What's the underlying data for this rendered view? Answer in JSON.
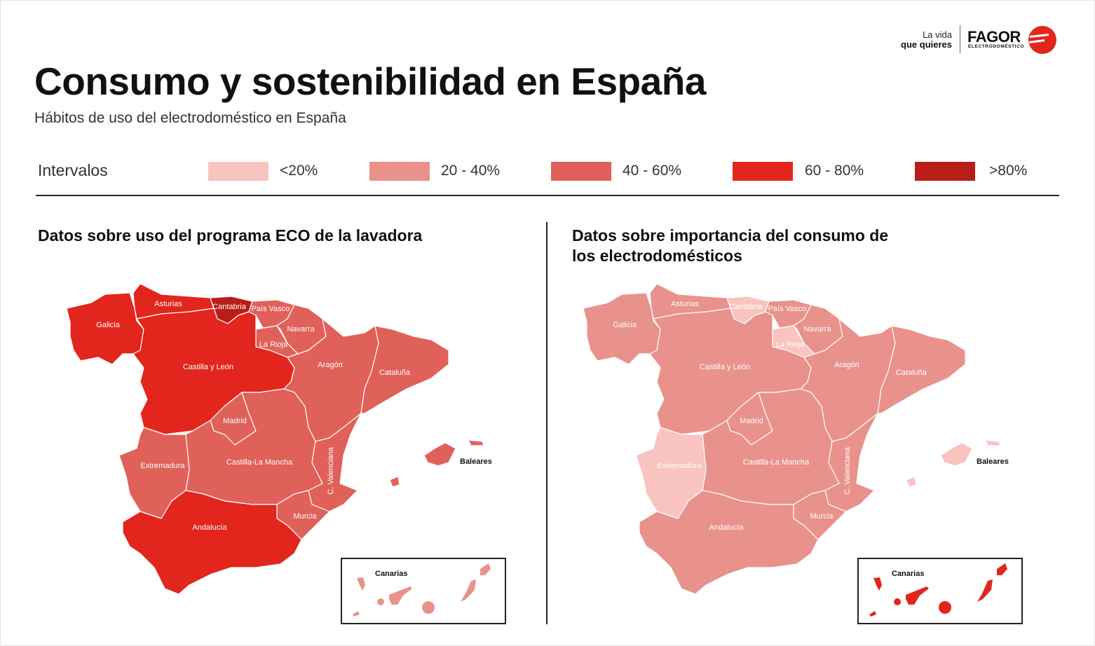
{
  "brand": {
    "tagline_line1": "La vida",
    "tagline_line2": "que quieres",
    "name": "FAGOR",
    "subname": "ELECTRODOMÉSTICO",
    "color": "#e2261d"
  },
  "header": {
    "title": "Consumo y sostenibilidad en España",
    "subtitle": "Hábitos de uso del electrodoméstico en España"
  },
  "legend": {
    "title": "Intervalos",
    "intervals": [
      {
        "label": "<20%",
        "color": "#f9c3bf"
      },
      {
        "label": "20 - 40%",
        "color": "#e8928b"
      },
      {
        "label": "40 - 60%",
        "color": "#e0605a"
      },
      {
        "label": "60 - 80%",
        "color": "#e2261d"
      },
      {
        "label": ">80%",
        "color": "#b81d18"
      }
    ]
  },
  "maps": [
    {
      "title": "Datos sobre uso del programa ECO de la lavadora",
      "regions": {
        "galicia": {
          "label": "Galicia",
          "interval": 3
        },
        "asturias": {
          "label": "Asturias",
          "interval": 3
        },
        "cantabria": {
          "label": "Cantabria",
          "interval": 4
        },
        "pais_vasco": {
          "label": "País Vasco",
          "interval": 2
        },
        "navarra": {
          "label": "Navarra",
          "interval": 2
        },
        "la_rioja": {
          "label": "La Rioja",
          "interval": 2
        },
        "castilla_leon": {
          "label": "Castilla y León",
          "interval": 3
        },
        "aragon": {
          "label": "Aragón",
          "interval": 2
        },
        "cataluna": {
          "label": "Cataluña",
          "interval": 2
        },
        "madrid": {
          "label": "Madrid",
          "interval": 2
        },
        "castilla_la_mancha": {
          "label": "Castilla-La Mancha",
          "interval": 2
        },
        "extremadura": {
          "label": "Extremadura",
          "interval": 2
        },
        "c_valenciana": {
          "label": "C. Valenciana",
          "interval": 2
        },
        "murcia": {
          "label": "Murcia",
          "interval": 2
        },
        "andalucia": {
          "label": "Andalucía",
          "interval": 3
        },
        "baleares": {
          "label": "Baleares",
          "interval": 2
        },
        "canarias": {
          "label": "Canarias",
          "interval": 1
        }
      }
    },
    {
      "title": "Datos sobre importancia del consumo de los electrodomésticos",
      "regions": {
        "galicia": {
          "label": "Galicia",
          "interval": 1
        },
        "asturias": {
          "label": "Asturias",
          "interval": 1
        },
        "cantabria": {
          "label": "Cantabria",
          "interval": 0
        },
        "pais_vasco": {
          "label": "País Vasco",
          "interval": 1
        },
        "navarra": {
          "label": "Navarra",
          "interval": 1
        },
        "la_rioja": {
          "label": "La Rioja",
          "interval": 0
        },
        "castilla_leon": {
          "label": "Castilla y León",
          "interval": 1
        },
        "aragon": {
          "label": "Aragón",
          "interval": 1
        },
        "cataluna": {
          "label": "Cataluña",
          "interval": 1
        },
        "madrid": {
          "label": "Madrid",
          "interval": 1
        },
        "castilla_la_mancha": {
          "label": "Castilla-La Mancha",
          "interval": 1
        },
        "extremadura": {
          "label": "Extremadura",
          "interval": 0
        },
        "c_valenciana": {
          "label": "C. Valenciana",
          "interval": 1
        },
        "murcia": {
          "label": "Murcia",
          "interval": 1
        },
        "andalucia": {
          "label": "Andalucía",
          "interval": 1
        },
        "baleares": {
          "label": "Baleares",
          "interval": 0
        },
        "canarias": {
          "label": "Canarias",
          "interval": 3
        }
      }
    }
  ]
}
